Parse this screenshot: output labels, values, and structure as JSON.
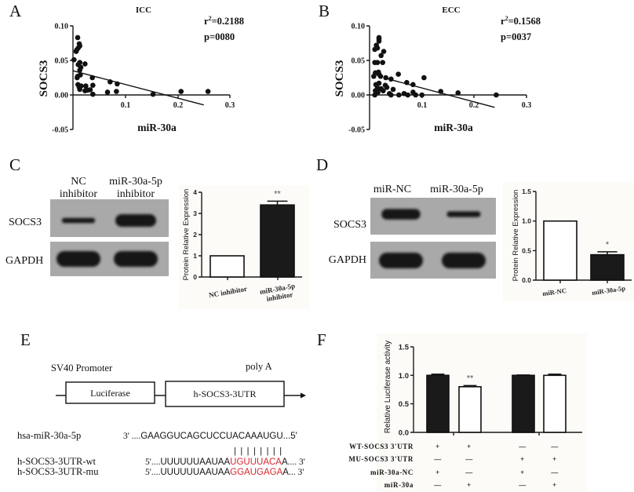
{
  "panels": {
    "a": "A",
    "b": "B",
    "c": "C",
    "d": "D",
    "e": "E",
    "f": "F"
  },
  "chart_data": [
    {
      "id": "A",
      "type": "scatter",
      "title": "ICC",
      "xlabel": "miR-30a",
      "ylabel": "SOCS3",
      "xlim": [
        0,
        0.3
      ],
      "ylim": [
        -0.05,
        0.1
      ],
      "xticks": [
        "0.1",
        "0.2",
        "0.3"
      ],
      "yticks": [
        "0.10",
        "0.05",
        "0.00",
        "-0.05"
      ],
      "stats": {
        "r_symbol": "r",
        "r_exp": "2",
        "r2_value": "=0.2188",
        "p_text": "p=0080"
      },
      "fit": {
        "x0": 0.0,
        "x1": 0.25,
        "intercept": 0.035,
        "slope": -0.198
      },
      "points": [
        [
          0.002,
          0.051
        ],
        [
          0.009,
          0.083
        ],
        [
          0.012,
          0.074
        ],
        [
          0.013,
          0.071
        ],
        [
          0.01,
          0.068
        ],
        [
          0.007,
          0.065
        ],
        [
          0.006,
          0.063
        ],
        [
          0.013,
          0.047
        ],
        [
          0.01,
          0.044
        ],
        [
          0.023,
          0.045
        ],
        [
          0.015,
          0.04
        ],
        [
          0.013,
          0.036
        ],
        [
          0.009,
          0.027
        ],
        [
          0.014,
          0.029
        ],
        [
          0.008,
          0.025
        ],
        [
          0.0095,
          0.015
        ],
        [
          0.0155,
          0.013
        ],
        [
          0.0245,
          0.013
        ],
        [
          0.012,
          0.011
        ],
        [
          0.013,
          0.008
        ],
        [
          0.023,
          0.006
        ],
        [
          0.033,
          0.0075
        ],
        [
          0.028,
          0.007
        ],
        [
          0.038,
          0.014
        ],
        [
          0.037,
          0.025
        ],
        [
          0.038,
          0.001
        ],
        [
          0.066,
          0.004
        ],
        [
          0.071,
          0.019
        ],
        [
          0.083,
          0.005
        ],
        [
          0.0845,
          0.016
        ],
        [
          0.153,
          0.001
        ],
        [
          0.2065,
          0.005
        ],
        [
          0.258,
          0.005
        ]
      ]
    },
    {
      "id": "B",
      "type": "scatter",
      "title": "ECC",
      "xlabel": "miR-30a",
      "ylabel": "SOCS3",
      "xlim": [
        0,
        0.3
      ],
      "ylim": [
        -0.05,
        0.1
      ],
      "xticks": [
        "0.1",
        "0.2",
        "0.3"
      ],
      "yticks": [
        "0.10",
        "0.05",
        "0.00",
        "-0.05"
      ],
      "stats": {
        "r_symbol": "r",
        "r_exp": "2",
        "r2_value": "=0.1568",
        "p_text": "p=0037"
      },
      "fit": {
        "x0": 0.031,
        "x1": 0.239,
        "intercept": 0.0303,
        "slope": -0.202
      },
      "points": [
        [
          0.018,
          0.083
        ],
        [
          0.018,
          0.081
        ],
        [
          0.018,
          0.078
        ],
        [
          0.013,
          0.072
        ],
        [
          0.015,
          0.068
        ],
        [
          0.01,
          0.066
        ],
        [
          0.027,
          0.063
        ],
        [
          0.022,
          0.057
        ],
        [
          0.01,
          0.047
        ],
        [
          0.015,
          0.047
        ],
        [
          0.025,
          0.047
        ],
        [
          0.011,
          0.032
        ],
        [
          0.017,
          0.033
        ],
        [
          0.018,
          0.03
        ],
        [
          0.008,
          0.027
        ],
        [
          0.021,
          0.027
        ],
        [
          0.031,
          0.025
        ],
        [
          0.041,
          0.023
        ],
        [
          0.055,
          0.03
        ],
        [
          0.012,
          0.015
        ],
        [
          0.018,
          0.017
        ],
        [
          0.03,
          0.014
        ],
        [
          0.015,
          0.01
        ],
        [
          0.022,
          0.009
        ],
        [
          0.033,
          0.011
        ],
        [
          0.011,
          0.006
        ],
        [
          0.016,
          0.004
        ],
        [
          0.026,
          0.006
        ],
        [
          0.038,
          0.002
        ],
        [
          0.045,
          0.008
        ],
        [
          0.01,
          0.0
        ],
        [
          0.041,
          0.0
        ],
        [
          0.056,
          0.0
        ],
        [
          0.066,
          0.002
        ],
        [
          0.071,
          0.018
        ],
        [
          0.083,
          0.015
        ],
        [
          0.073,
          0.0
        ],
        [
          0.083,
          0.004
        ],
        [
          0.088,
          0.0
        ],
        [
          0.104,
          0.025
        ],
        [
          0.1,
          0.0
        ],
        [
          0.136,
          0.005
        ],
        [
          0.169,
          0.003
        ],
        [
          0.242,
          0.0
        ]
      ]
    },
    {
      "id": "C",
      "type": "bar",
      "categories": [
        "NC inhibitor",
        "miR-30a-5p inhibitor"
      ],
      "category_lines": [
        [
          "NC inhibitor"
        ],
        [
          "miR-30a-5p",
          "inhibitor"
        ]
      ],
      "values": [
        1.0,
        3.4
      ],
      "errors": [
        0,
        0.18
      ],
      "annotations": [
        "",
        "**"
      ],
      "fills": [
        "#ffffff",
        "#1a1a1a"
      ],
      "ylabel": "Protein Relative Expression",
      "xlabel": "",
      "ylim": [
        0,
        4
      ],
      "yticks": [
        "0",
        "1",
        "2",
        "3",
        "4"
      ]
    },
    {
      "id": "D",
      "type": "bar",
      "categories": [
        "miR-NC",
        "miR-30a-5p"
      ],
      "values": [
        1.0,
        0.43
      ],
      "errors": [
        0,
        0.05
      ],
      "annotations": [
        "",
        "*"
      ],
      "fills": [
        "#ffffff",
        "#1a1a1a"
      ],
      "ylabel": "Protein Relative Expression",
      "xlabel": "",
      "ylim": [
        0,
        1.5
      ],
      "yticks": [
        "0.0",
        "0.5",
        "1.0",
        "1.5"
      ]
    },
    {
      "id": "F",
      "type": "bar",
      "values": [
        1.0,
        0.8,
        1.0,
        1.0
      ],
      "errors": [
        0.02,
        0.02,
        0.005,
        0.02
      ],
      "annotations": [
        "",
        "**",
        "",
        ""
      ],
      "fills": [
        "#1a1a1a",
        "#ffffff",
        "#1a1a1a",
        "#ffffff"
      ],
      "ylabel": "Relative Luciferase activity",
      "xlabel": "",
      "ylim": [
        0,
        1.5
      ],
      "yticks": [
        "0.0",
        "0.5",
        "1.0",
        "1.5"
      ],
      "conditions": [
        {
          "label": "WT-SOCS3 3'UTR",
          "values": [
            "+",
            "+",
            "—",
            "—"
          ]
        },
        {
          "label": "MU-SOCS3 3'UTR",
          "values": [
            "—",
            "—",
            "+",
            "+"
          ]
        },
        {
          "label": "miR-30a-NC",
          "values": [
            "+",
            "—",
            "+",
            "—"
          ]
        },
        {
          "label": "miR-30a",
          "values": [
            "—",
            "+",
            "—",
            "+"
          ]
        }
      ]
    }
  ],
  "blots": {
    "c": {
      "lanes": [
        {
          "line1": "NC",
          "line2": "inhibitor"
        },
        {
          "line1": "miR-30a-5p",
          "line2": "inhibitor"
        }
      ],
      "rows": [
        "SOCS3",
        "GAPDH"
      ],
      "bands": [
        {
          "row": 0,
          "lane": 0,
          "intensity": 0.15
        },
        {
          "row": 0,
          "lane": 1,
          "intensity": 0.75
        },
        {
          "row": 1,
          "lane": 0,
          "intensity": 1.0
        },
        {
          "row": 1,
          "lane": 1,
          "intensity": 1.0
        }
      ]
    },
    "d": {
      "lanes": [
        "miR-NC",
        "miR-30a-5p"
      ],
      "rows": [
        "SOCS3",
        "GAPDH"
      ],
      "bands": [
        {
          "row": 0,
          "lane": 0,
          "intensity": 0.6
        },
        {
          "row": 0,
          "lane": 1,
          "intensity": 0.2
        },
        {
          "row": 1,
          "lane": 0,
          "intensity": 1.0
        },
        {
          "row": 1,
          "lane": 1,
          "intensity": 1.0
        }
      ]
    }
  },
  "construct": {
    "promoter": "SV40 Promoter",
    "polya": "poly A",
    "gene": "Luciferase",
    "utr": "h-SOCS3-3UTR"
  },
  "alignment": {
    "site_color": "#d9262c",
    "mirna": {
      "name": "hsa-miR-30a-5p",
      "lead": "3' ....",
      "bases": "GAAGGUCAGCUCCUACAAAUGU",
      "tail": "...5'"
    },
    "pairing": "| | | | | | | |",
    "wt": {
      "name": "h-SOCS3-3UTR-wt",
      "lead": "5'....",
      "bases": "UUUUUUAAUAA",
      "site": "UGUUUACA",
      "after": "A",
      "tail": ".... 3'"
    },
    "mu": {
      "name": "h-SOCS3-3UTR-mu",
      "lead": "5'....",
      "bases": "UUUUUUAAUAA",
      "site": "GGAUGAGA",
      "after": "A",
      "tail": "... 3'"
    }
  }
}
